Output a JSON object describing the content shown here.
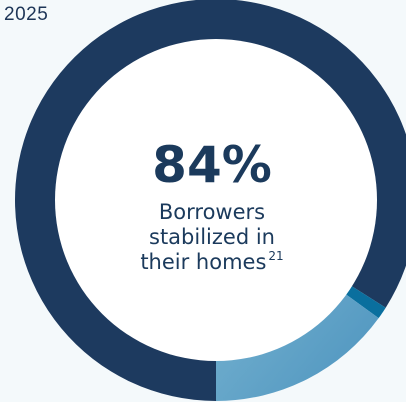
{
  "year": "2025",
  "center": {
    "value": "84%",
    "label_lines": [
      "Borrowers",
      "stabilized in",
      "their homes"
    ],
    "footnote": "21"
  },
  "colors": {
    "background": "#f4f9fb",
    "stabilized": "#1d3a5f",
    "second": "#0a6f9e",
    "third_start": "#7fb9d4",
    "third_end": "#4c93be",
    "center_fill": "#ffffff",
    "text": "#1b3a5c"
  },
  "chart_data": {
    "type": "pie",
    "donut": true,
    "categories": [
      "",
      "",
      ""
    ],
    "values": [
      84,
      1,
      15
    ]
  }
}
